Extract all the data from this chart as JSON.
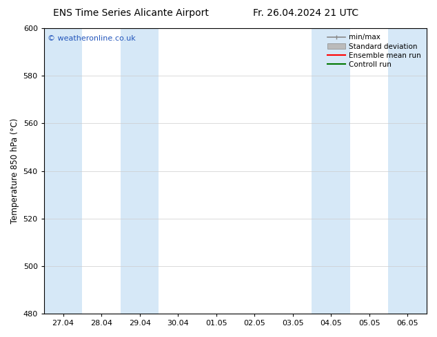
{
  "title_left": "ENS Time Series Alicante Airport",
  "title_right": "Fr. 26.04.2024 21 UTC",
  "ylabel": "Temperature 850 hPa (°C)",
  "watermark": "© weatheronline.co.uk",
  "ylim": [
    480,
    600
  ],
  "yticks": [
    480,
    500,
    520,
    540,
    560,
    580,
    600
  ],
  "x_labels": [
    "27.04",
    "28.04",
    "29.04",
    "30.04",
    "01.05",
    "02.05",
    "03.05",
    "04.05",
    "05.05",
    "06.05"
  ],
  "n_cols": 10,
  "shaded_cols": [
    0,
    2,
    7,
    9
  ],
  "shaded_color": "#d6e8f7",
  "grid_color": "#cccccc",
  "background_color": "#ffffff",
  "plot_bg_color": "#ffffff",
  "legend_items": [
    {
      "label": "min/max",
      "color": "#888888",
      "style": "minmax"
    },
    {
      "label": "Standard deviation",
      "color": "#bbbbbb",
      "style": "box"
    },
    {
      "label": "Ensemble mean run",
      "color": "#ff0000",
      "style": "line"
    },
    {
      "label": "Controll run",
      "color": "#007700",
      "style": "line"
    }
  ],
  "watermark_color": "#2255bb",
  "title_fontsize": 10,
  "tick_fontsize": 8,
  "ylabel_fontsize": 8.5,
  "legend_fontsize": 7.5
}
